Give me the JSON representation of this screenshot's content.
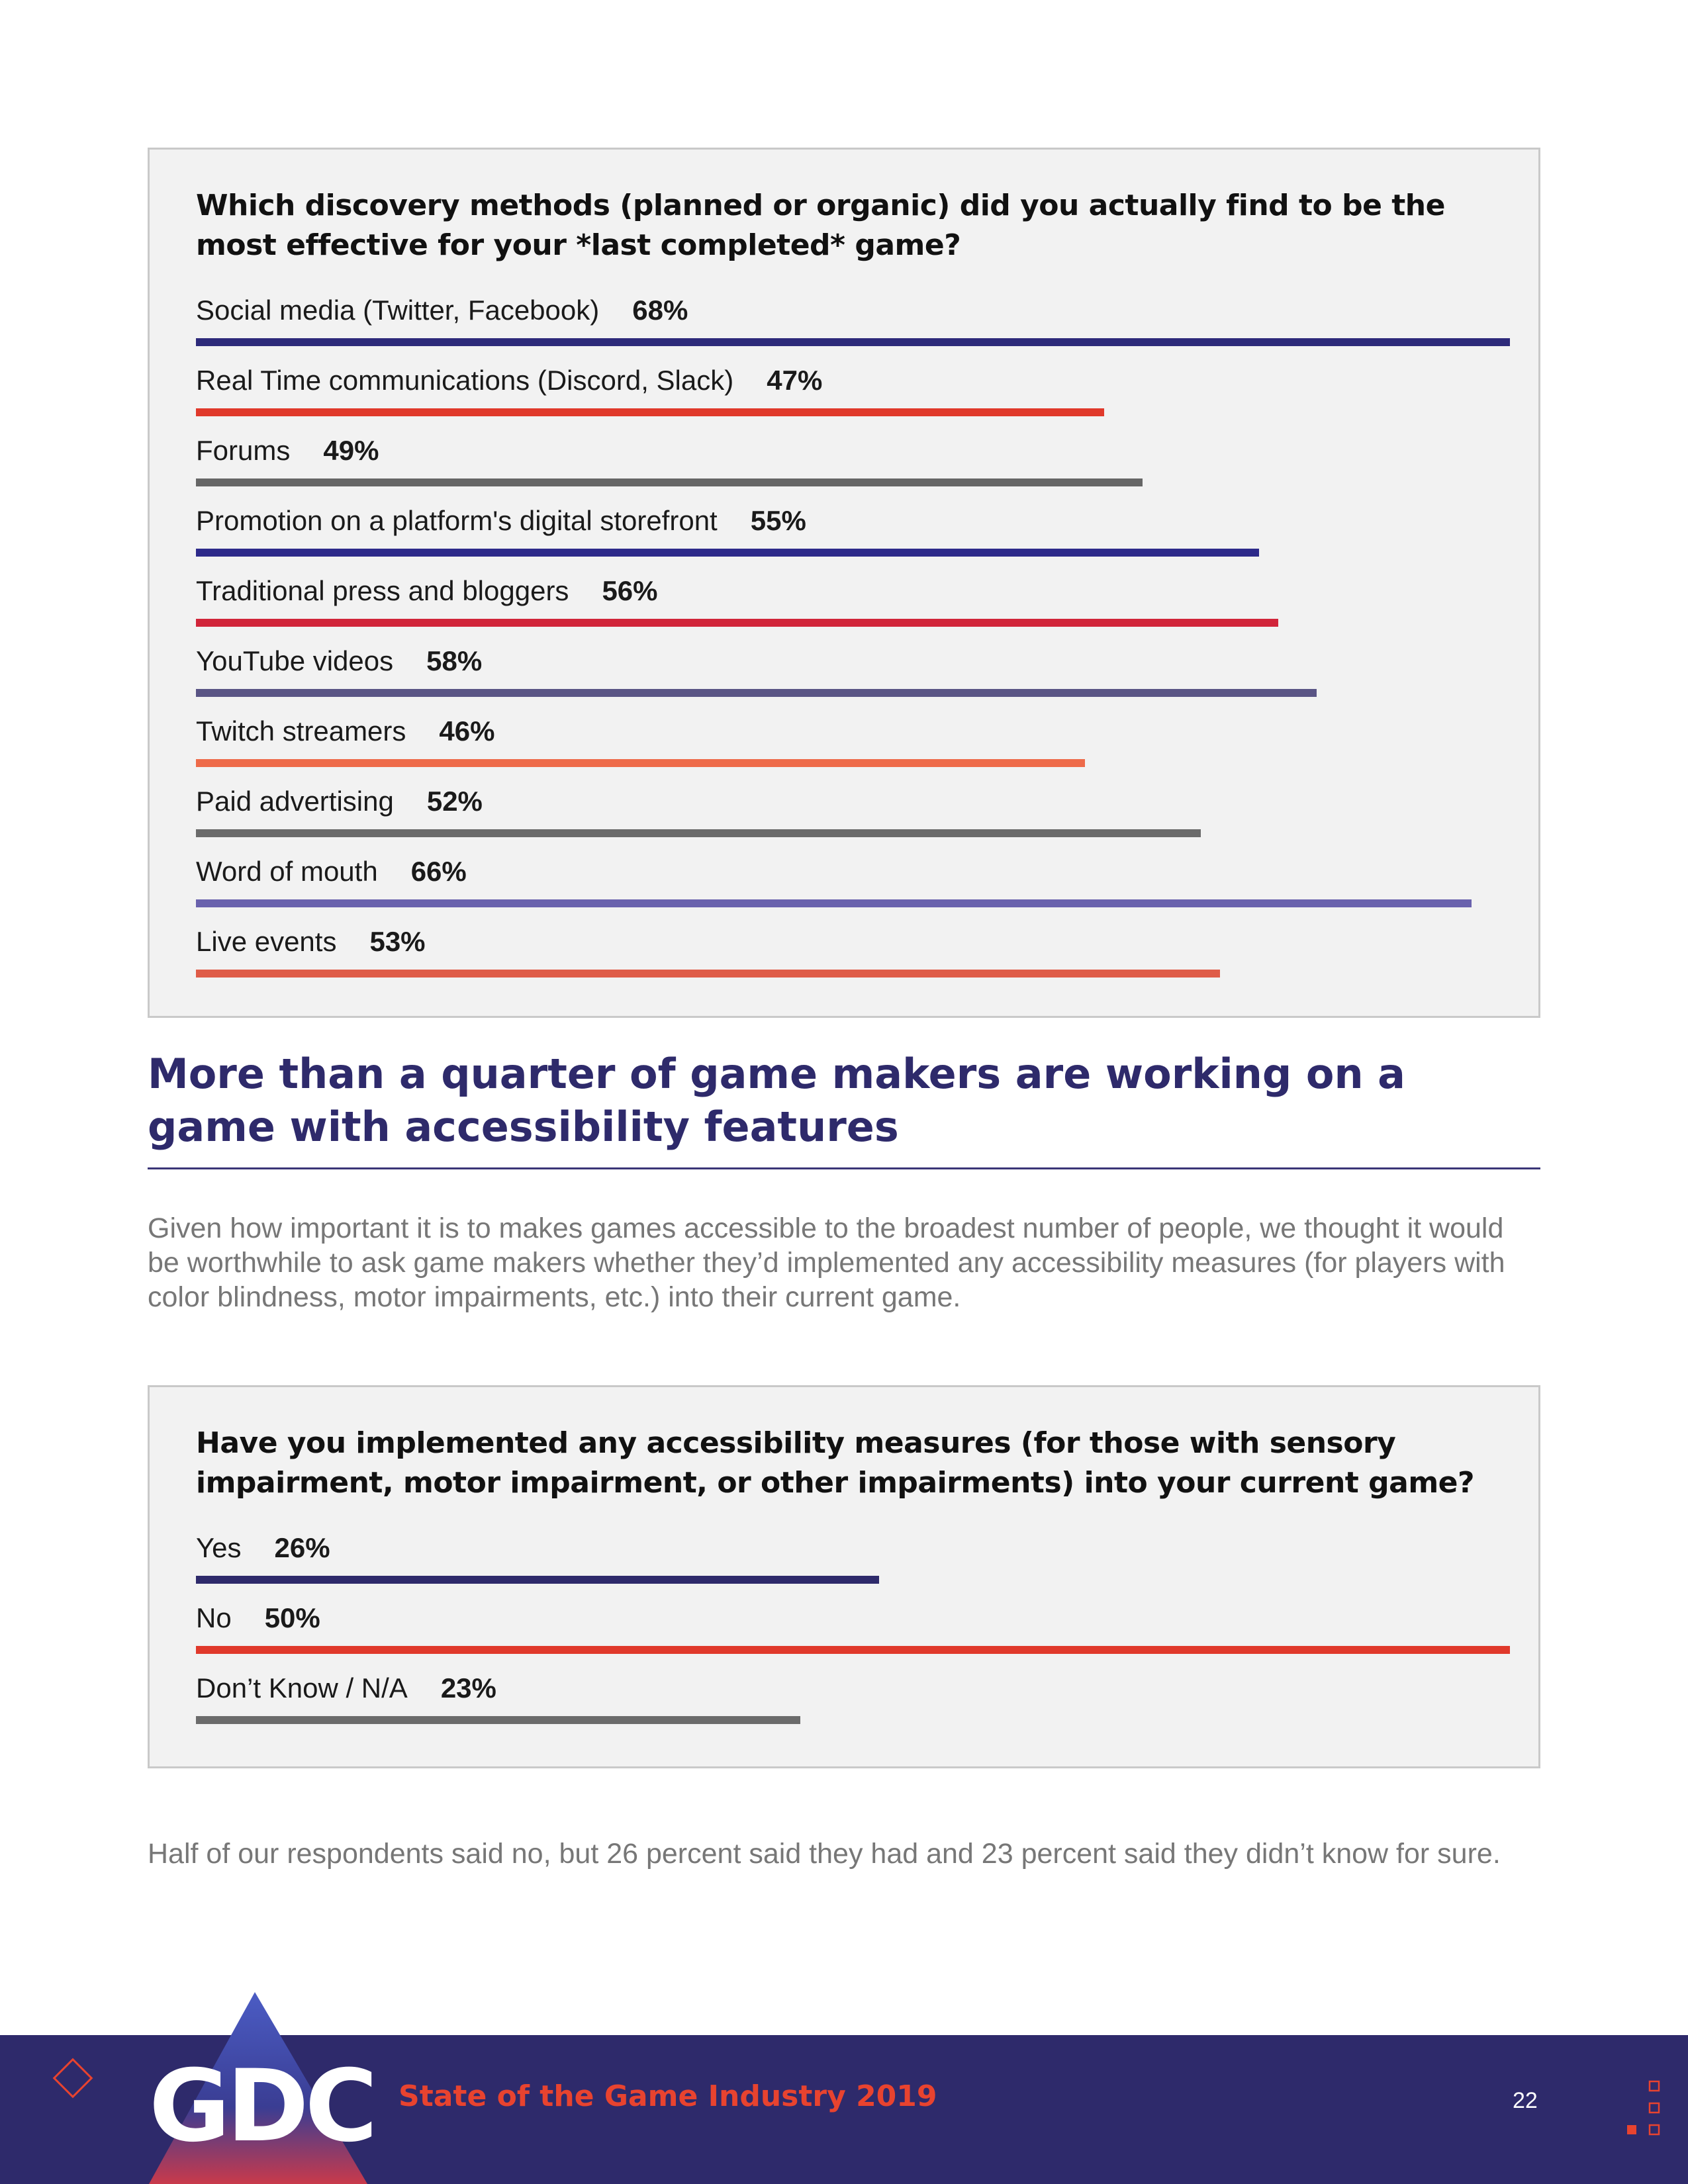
{
  "chart_data": [
    {
      "type": "bar",
      "title": "Which discovery methods (planned or organic) did you actually find to be the most effective for your *last completed* game?",
      "categories": [
        "Social media (Twitter, Facebook)",
        "Real Time communications (Discord, Slack)",
        "Forums",
        "Promotion on a platform's digital storefront",
        "Traditional press and bloggers",
        "YouTube videos",
        "Twitch streamers",
        "Paid advertising",
        "Word of mouth",
        "Live events"
      ],
      "values": [
        68,
        47,
        49,
        55,
        56,
        58,
        46,
        52,
        66,
        53
      ],
      "value_labels": [
        "68%",
        "47%",
        "49%",
        "55%",
        "56%",
        "58%",
        "46%",
        "52%",
        "66%",
        "53%"
      ],
      "xlim": [
        0,
        68
      ],
      "colors": [
        "#2d2a7a",
        "#e0392b",
        "#666666",
        "#2d2a8a",
        "#d1253a",
        "#5a5585",
        "#ee6b4a",
        "#6b6b6b",
        "#6a62ad",
        "#df5c48"
      ],
      "grid": false
    },
    {
      "type": "bar",
      "title": "Have you implemented any accessibility measures (for those with sensory impairment, motor impairment, or other impairments) into your current game?",
      "categories": [
        "Yes",
        "No",
        "Don’t Know / N/A"
      ],
      "values": [
        26,
        50,
        23
      ],
      "value_labels": [
        "26%",
        "50%",
        "23%"
      ],
      "xlim": [
        0,
        50
      ],
      "colors": [
        "#2e2a6b",
        "#e0392b",
        "#6b6b6b"
      ],
      "grid": false
    }
  ],
  "section": {
    "heading": "More than a quarter of game makers are working on a game with accessibility features",
    "intro": "Given how important it is to makes games accessible to the broadest number of people, we thought it would be worthwhile to ask game makers whether they’d implemented any accessibility measures (for players with color blindness, motor impairments, etc.) into their current game.",
    "summary": "Half of our respondents said no, but 26 percent said they had and 23 percent said they didn’t know for sure."
  },
  "footer": {
    "logo": "GDC",
    "title": "State of the Game Industry 2019",
    "page_number": "22"
  }
}
